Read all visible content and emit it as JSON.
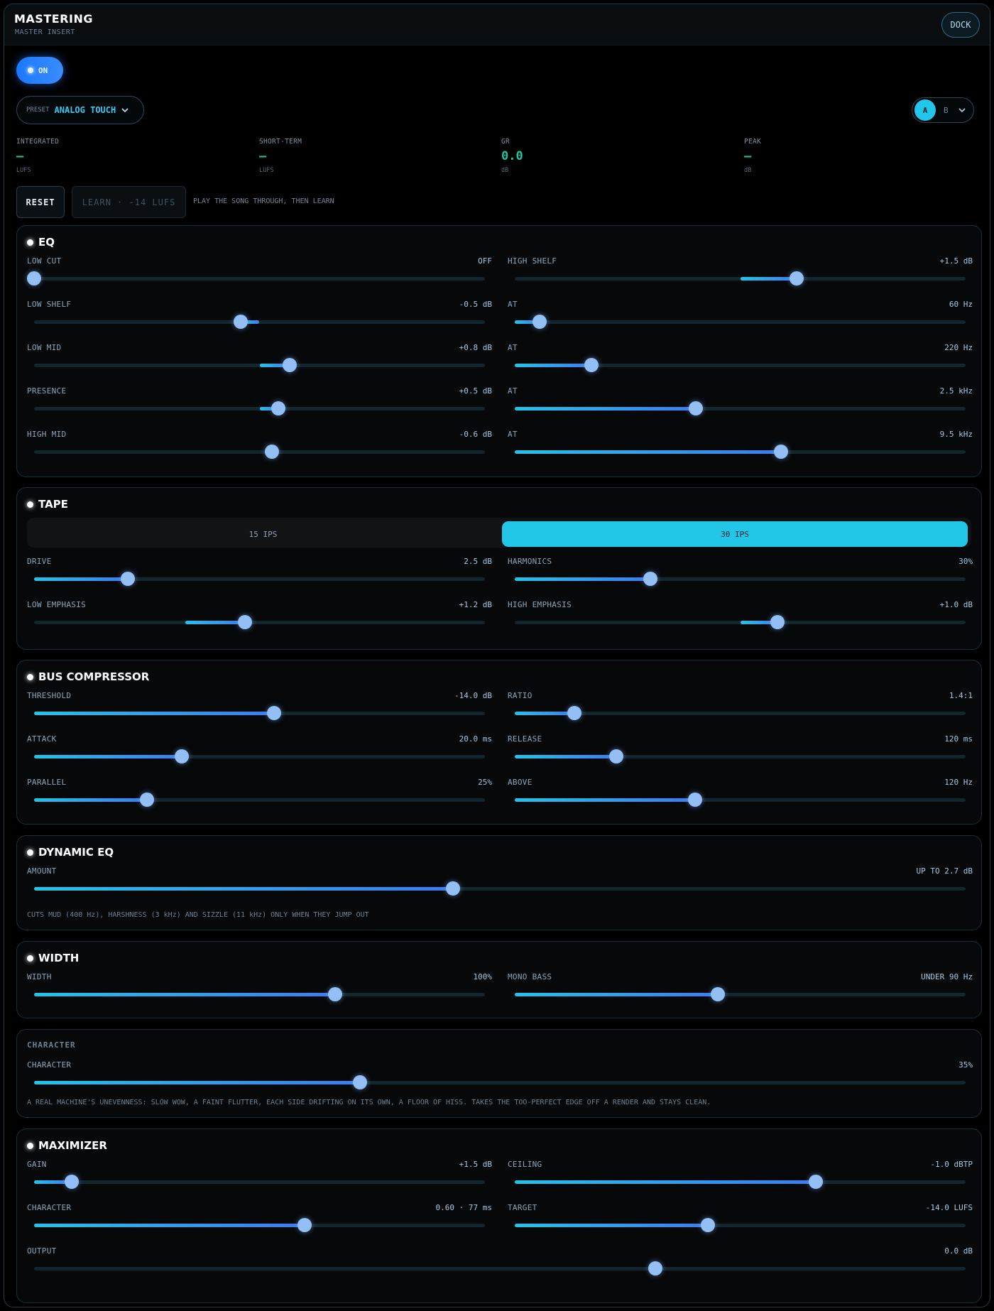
{
  "header": {
    "title": "MASTERING",
    "subtitle": "MASTER INSERT",
    "dock_label": "DOCK"
  },
  "power": {
    "label": "ON",
    "state": "on"
  },
  "preset": {
    "label": "PRESET",
    "value": "ANALOG TOUCH"
  },
  "ab": {
    "a": "A",
    "b": "B",
    "selected": "A"
  },
  "meters": [
    {
      "label": "INTEGRATED",
      "value": "–",
      "unit": "LUFS"
    },
    {
      "label": "SHORT-TERM",
      "value": "–",
      "unit": "LUFS"
    },
    {
      "label": "GR",
      "value": "0.0",
      "unit": "dB"
    },
    {
      "label": "PEAK",
      "value": "–",
      "unit": "dB"
    }
  ],
  "actions": {
    "reset": "RESET",
    "learn": "LEARN · -14 LUFS",
    "hint": "PLAY THE SONG THROUGH, THEN LEARN"
  },
  "eq": {
    "title": "EQ",
    "controls": [
      {
        "label": "LOW CUT",
        "value": "OFF",
        "level": 0.0,
        "bipolar": false,
        "fill": false
      },
      {
        "label": "HIGH SHELF",
        "value": "+1.5 dB",
        "level": 0.625,
        "bipolar": true
      },
      {
        "label": "LOW SHELF",
        "value": "-0.5 dB",
        "level": 0.458,
        "bipolar": true
      },
      {
        "label": "AT",
        "value": "60 Hz",
        "level": 0.055,
        "bipolar": false
      },
      {
        "label": "LOW MID",
        "value": "+0.8 dB",
        "level": 0.567,
        "bipolar": true
      },
      {
        "label": "AT",
        "value": "220 Hz",
        "level": 0.17,
        "bipolar": false
      },
      {
        "label": "PRESENCE",
        "value": "+0.5 dB",
        "level": 0.542,
        "bipolar": true
      },
      {
        "label": "AT",
        "value": "2.5 kHz",
        "level": 0.402,
        "bipolar": false
      },
      {
        "label": "HIGH MID",
        "value": "-0.6 dB",
        "level": 0.528,
        "bipolar": true,
        "reverse": true
      },
      {
        "label": "AT",
        "value": "9.5 kHz",
        "level": 0.59,
        "bipolar": false
      }
    ]
  },
  "tape": {
    "title": "TAPE",
    "speeds": [
      "15 IPS",
      "30 IPS"
    ],
    "selected_speed": "30 IPS",
    "controls": [
      {
        "label": "DRIVE",
        "value": "2.5 dB",
        "level": 0.208,
        "bipolar": false
      },
      {
        "label": "HARMONICS",
        "value": "30%",
        "level": 0.3,
        "bipolar": false
      },
      {
        "label": "LOW EMPHASIS",
        "value": "+1.2 dB",
        "level": 0.467,
        "bipolar": true,
        "center": 0.336
      },
      {
        "label": "HIGH EMPHASIS",
        "value": "+1.0 dB",
        "level": 0.583,
        "bipolar": true
      }
    ]
  },
  "bus_compressor": {
    "title": "BUS COMPRESSOR",
    "controls": [
      {
        "label": "THRESHOLD",
        "value": "-14.0 dB",
        "level": 0.533,
        "bipolar": false
      },
      {
        "label": "RATIO",
        "value": "1.4:1",
        "level": 0.133,
        "bipolar": false
      },
      {
        "label": "ATTACK",
        "value": "20.0 ms",
        "level": 0.328,
        "bipolar": false
      },
      {
        "label": "RELEASE",
        "value": "120 ms",
        "level": 0.225,
        "bipolar": false
      },
      {
        "label": "PARALLEL",
        "value": "25%",
        "level": 0.25,
        "bipolar": false
      },
      {
        "label": "ABOVE",
        "value": "120 Hz",
        "level": 0.4,
        "bipolar": false
      }
    ]
  },
  "dynamic_eq": {
    "title": "DYNAMIC EQ",
    "amount_label": "AMOUNT",
    "amount_value": "UP TO 2.7 dB",
    "amount_level": 0.45,
    "note": "CUTS MUD (400 Hz), HARSHNESS (3 kHz) AND SIZZLE (11 kHz) ONLY WHEN THEY JUMP OUT"
  },
  "width": {
    "title": "WIDTH",
    "controls": [
      {
        "label": "WIDTH",
        "value": "100%",
        "level": 0.667,
        "bipolar": false
      },
      {
        "label": "MONO BASS",
        "value": "UNDER 90 Hz",
        "level": 0.45,
        "bipolar": false
      }
    ]
  },
  "character": {
    "title": "CHARACTER",
    "label": "CHARACTER",
    "value": "35%",
    "level": 0.35,
    "note": "A REAL MACHINE'S UNEVENNESS: SLOW WOW, A FAINT FLUTTER, EACH SIDE DRIFTING ON ITS OWN, A FLOOR OF HISS. TAKES THE TOO-PERFECT EDGE OFF A RENDER AND STAYS CLEAN."
  },
  "maximizer": {
    "title": "MAXIMIZER",
    "controls": [
      {
        "label": "GAIN",
        "value": "+1.5 dB",
        "level": 0.083,
        "bipolar": false
      },
      {
        "label": "CEILING",
        "value": "-1.0 dBTP",
        "level": 0.667,
        "bipolar": false
      },
      {
        "label": "CHARACTER",
        "value": "0.60 · 77 ms",
        "level": 0.6,
        "bipolar": false
      },
      {
        "label": "TARGET",
        "value": "-14.0 LUFS",
        "level": 0.428,
        "bipolar": false
      }
    ],
    "output_label": "OUTPUT",
    "output_value": "0.0 dB",
    "output_level": 0.667
  }
}
